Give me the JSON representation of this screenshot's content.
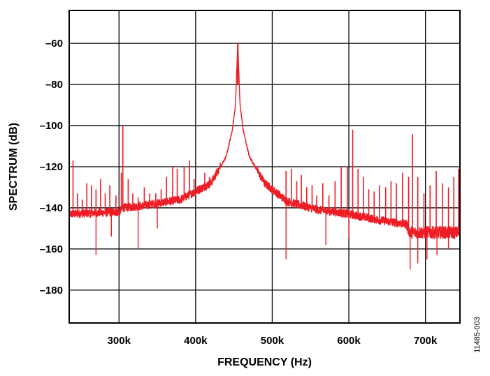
{
  "chart_data": {
    "type": "line",
    "xlabel": "FREQUENCY (Hz)",
    "ylabel": "SPECTRUM (dB)",
    "xlim": [
      235000,
      745000
    ],
    "ylim": [
      -196,
      -44
    ],
    "x_ticks": [
      {
        "value": 300000,
        "label": "300k"
      },
      {
        "value": 400000,
        "label": "400k"
      },
      {
        "value": 500000,
        "label": "500k"
      },
      {
        "value": 600000,
        "label": "600k"
      },
      {
        "value": 700000,
        "label": "700k"
      }
    ],
    "y_ticks": [
      {
        "value": -60,
        "label": "–60"
      },
      {
        "value": -80,
        "label": "–80"
      },
      {
        "value": -100,
        "label": "–100"
      },
      {
        "value": -120,
        "label": "–120"
      },
      {
        "value": -140,
        "label": "–140"
      },
      {
        "value": -160,
        "label": "–160"
      },
      {
        "value": -180,
        "label": "–180"
      }
    ],
    "grid": true,
    "series": [
      {
        "color": "#ee1c24",
        "carrier": {
          "x": 455000,
          "y": -60
        },
        "spurs": [
          [
            240000,
            -117
          ],
          [
            246000,
            -133
          ],
          [
            252000,
            -136
          ],
          [
            258000,
            -128
          ],
          [
            264000,
            -129
          ],
          [
            270000,
            -131
          ],
          [
            276000,
            -126
          ],
          [
            282000,
            -133
          ],
          [
            288000,
            -129
          ],
          [
            296000,
            -134
          ],
          [
            303000,
            -123
          ],
          [
            305000,
            -100
          ],
          [
            312000,
            -126
          ],
          [
            318000,
            -133
          ],
          [
            325000,
            -135
          ],
          [
            333000,
            -130
          ],
          [
            340000,
            -133
          ],
          [
            348000,
            -133
          ],
          [
            355000,
            -131
          ],
          [
            362000,
            -125
          ],
          [
            370000,
            -120
          ],
          [
            376000,
            -121
          ],
          [
            385000,
            -120
          ],
          [
            392000,
            -117
          ],
          [
            398000,
            -126
          ],
          [
            405000,
            -129
          ],
          [
            412000,
            -123
          ],
          [
            418000,
            -125
          ],
          [
            425000,
            -125
          ],
          [
            432000,
            -118
          ],
          [
            518000,
            -122
          ],
          [
            525000,
            -121
          ],
          [
            532000,
            -127
          ],
          [
            538000,
            -124
          ],
          [
            545000,
            -130
          ],
          [
            552000,
            -129
          ],
          [
            558000,
            -134
          ],
          [
            566000,
            -128
          ],
          [
            574000,
            -134
          ],
          [
            582000,
            -127
          ],
          [
            590000,
            -120
          ],
          [
            598000,
            -120
          ],
          [
            605000,
            -102
          ],
          [
            612000,
            -121
          ],
          [
            619000,
            -125
          ],
          [
            626000,
            -131
          ],
          [
            633000,
            -132
          ],
          [
            640000,
            -129
          ],
          [
            648000,
            -130
          ],
          [
            655000,
            -127
          ],
          [
            662000,
            -128
          ],
          [
            670000,
            -123
          ],
          [
            678000,
            -125
          ],
          [
            683000,
            -104
          ],
          [
            690000,
            -125
          ],
          [
            698000,
            -133
          ],
          [
            706000,
            -129
          ],
          [
            714000,
            -122
          ],
          [
            722000,
            -128
          ],
          [
            730000,
            -130
          ],
          [
            737000,
            -125
          ],
          [
            743000,
            -121
          ]
        ],
        "dips": [
          [
            270000,
            -163
          ],
          [
            290000,
            -154
          ],
          [
            325000,
            -160
          ],
          [
            350000,
            -150
          ],
          [
            518000,
            -165
          ],
          [
            570000,
            -158
          ],
          [
            600000,
            -155
          ],
          [
            680000,
            -170
          ],
          [
            690000,
            -167
          ],
          [
            702000,
            -165
          ],
          [
            715000,
            -163
          ],
          [
            730000,
            -160
          ]
        ],
        "noise_floor": [
          [
            235000,
            -143
          ],
          [
            300000,
            -142
          ],
          [
            305000,
            -140
          ],
          [
            330000,
            -139
          ],
          [
            380000,
            -136
          ],
          [
            420000,
            -128
          ],
          [
            440000,
            -115
          ],
          [
            448000,
            -102
          ],
          [
            452000,
            -90
          ],
          [
            455000,
            -60
          ],
          [
            458000,
            -90
          ],
          [
            462000,
            -102
          ],
          [
            470000,
            -115
          ],
          [
            490000,
            -128
          ],
          [
            520000,
            -137
          ],
          [
            560000,
            -141
          ],
          [
            600000,
            -143
          ],
          [
            640000,
            -146
          ],
          [
            675000,
            -148
          ],
          [
            680000,
            -152
          ],
          [
            745000,
            -152
          ]
        ]
      }
    ]
  },
  "figure_id": "11485-003"
}
